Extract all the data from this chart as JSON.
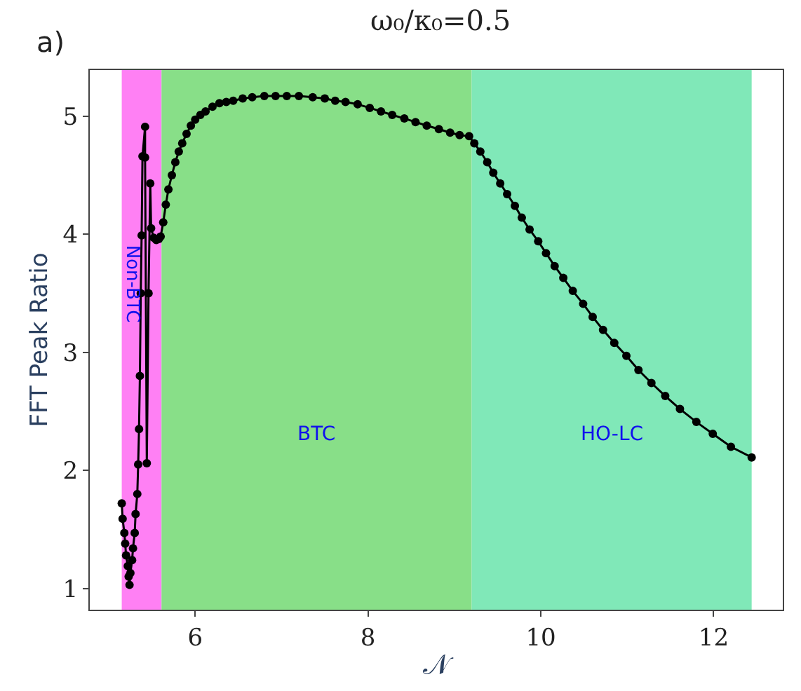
{
  "chart_data": {
    "type": "line",
    "title": "ω₀/κ₀=0.5",
    "xlabel": "𝒩",
    "ylabel": "FFT Peak Ratio",
    "annotations": [
      "a)"
    ],
    "xlim": [
      4.78,
      12.8
    ],
    "ylim": [
      0.82,
      5.39
    ],
    "xticks": [
      6,
      8,
      10,
      12
    ],
    "yticks": [
      1,
      2,
      3,
      4,
      5
    ],
    "grid": false,
    "marker": "circle",
    "line_style": "solid",
    "bands": [
      {
        "axis": "x",
        "from": 5.15,
        "to": 5.61,
        "label": "Non-BTC",
        "color": "#ff80f4"
      },
      {
        "axis": "x",
        "from": 5.61,
        "to": 9.2,
        "label": "BTC",
        "color": "#88df88"
      },
      {
        "axis": "x",
        "from": 9.2,
        "to": 12.44,
        "label": "HO-LC",
        "color": "#80e8b8"
      }
    ],
    "series": [
      {
        "color": "#000000",
        "x": [
          5.15,
          5.16,
          5.18,
          5.19,
          5.2,
          5.22,
          5.23,
          5.24,
          5.25,
          5.27,
          5.28,
          5.3,
          5.31,
          5.33,
          5.34,
          5.35,
          5.36,
          5.37,
          5.38,
          5.39,
          5.42,
          5.42,
          5.44,
          5.46,
          5.48,
          5.49,
          5.52,
          5.55,
          5.58,
          5.6,
          5.63,
          5.66,
          5.69,
          5.73,
          5.77,
          5.81,
          5.85,
          5.9,
          5.95,
          6.0,
          6.06,
          6.12,
          6.2,
          6.28,
          6.36,
          6.44,
          6.55,
          6.66,
          6.8,
          6.93,
          7.06,
          7.2,
          7.36,
          7.5,
          7.62,
          7.74,
          7.88,
          8.02,
          8.15,
          8.28,
          8.42,
          8.55,
          8.68,
          8.82,
          8.95,
          9.06,
          9.17,
          9.23,
          9.3,
          9.38,
          9.45,
          9.53,
          9.61,
          9.7,
          9.78,
          9.87,
          9.97,
          10.06,
          10.16,
          10.26,
          10.37,
          10.49,
          10.6,
          10.72,
          10.85,
          10.99,
          11.13,
          11.28,
          11.44,
          11.61,
          11.8,
          11.99,
          12.2,
          12.44
        ],
        "values": [
          1.72,
          1.59,
          1.47,
          1.38,
          1.28,
          1.19,
          1.1,
          1.03,
          1.13,
          1.24,
          1.34,
          1.47,
          1.63,
          1.8,
          2.05,
          2.35,
          2.8,
          3.5,
          3.99,
          4.66,
          4.91,
          4.65,
          2.06,
          3.5,
          4.43,
          4.05,
          3.97,
          3.95,
          3.96,
          3.98,
          4.1,
          4.25,
          4.38,
          4.5,
          4.61,
          4.7,
          4.77,
          4.85,
          4.92,
          4.97,
          5.01,
          5.04,
          5.08,
          5.11,
          5.12,
          5.13,
          5.15,
          5.16,
          5.17,
          5.17,
          5.17,
          5.17,
          5.16,
          5.15,
          5.13,
          5.12,
          5.1,
          5.07,
          5.04,
          5.01,
          4.98,
          4.95,
          4.92,
          4.89,
          4.86,
          4.84,
          4.83,
          4.77,
          4.7,
          4.61,
          4.52,
          4.43,
          4.34,
          4.24,
          4.14,
          4.04,
          3.94,
          3.84,
          3.73,
          3.63,
          3.52,
          3.41,
          3.3,
          3.19,
          3.08,
          2.97,
          2.85,
          2.74,
          2.63,
          2.52,
          2.41,
          2.31,
          2.2,
          2.11
        ]
      }
    ]
  }
}
